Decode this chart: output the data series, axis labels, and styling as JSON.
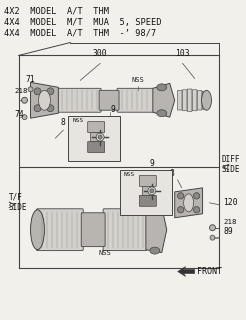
{
  "bg_color": "#f2f0eb",
  "title_lines": [
    "4X2  MODEL  A/T  THM",
    "4X4  MODEL  M/T  MUA  5, SPEED",
    "4X4  MODEL  A/T  THM  -’ 98/7"
  ],
  "line_color": "#444444",
  "part_color_light": "#d4d1cc",
  "part_color_mid": "#b8b5b0",
  "part_color_dark": "#8a8785",
  "font_mono": "monospace",
  "title_fontsize": 6.2,
  "label_fontsize": 5.8
}
